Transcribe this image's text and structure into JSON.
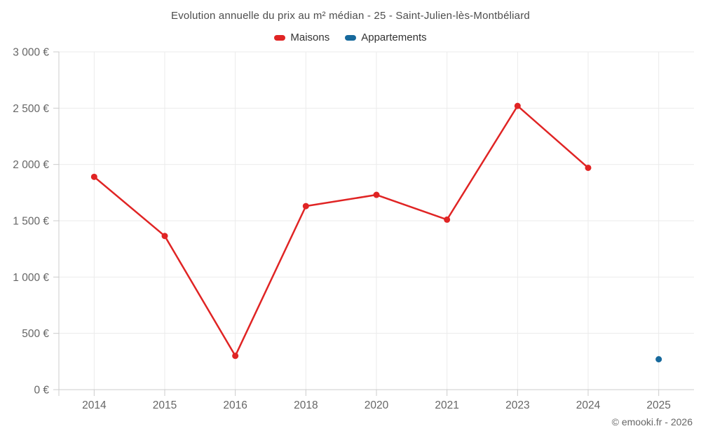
{
  "page": {
    "background": "#ffffff"
  },
  "chart_data": {
    "type": "line",
    "title": "Evolution annuelle du prix au m² médian - 25 - Saint-Julien-lès-Montbéliard",
    "categories": [
      "2014",
      "2015",
      "2016",
      "2018",
      "2020",
      "2021",
      "2023",
      "2024",
      "2025"
    ],
    "series": [
      {
        "name": "Maisons",
        "color": "#e02424",
        "marker": "circle",
        "values": [
          1890,
          1365,
          300,
          1630,
          1730,
          1510,
          2520,
          1970,
          null
        ]
      },
      {
        "name": "Appartements",
        "color": "#17699c",
        "marker": "circle",
        "values": [
          null,
          null,
          null,
          null,
          null,
          null,
          null,
          null,
          270
        ]
      }
    ],
    "xlabel": "",
    "ylabel": "",
    "ylim": [
      0,
      3000
    ],
    "y_ticks": [
      0,
      500,
      1000,
      1500,
      2000,
      2500,
      3000
    ],
    "y_tick_labels": [
      "0 €",
      "500 €",
      "1 000 €",
      "1 500 €",
      "2 000 €",
      "2 500 €",
      "3 000 €"
    ],
    "grid": true,
    "legend_position": "top",
    "styles": {
      "grid_color": "#ebebeb",
      "axis_color": "#cccccc",
      "tick_label_color": "#666666",
      "line_width": 2.5,
      "marker_radius": 4.5
    }
  },
  "footer": {
    "copyright": "© emooki.fr - 2026"
  }
}
